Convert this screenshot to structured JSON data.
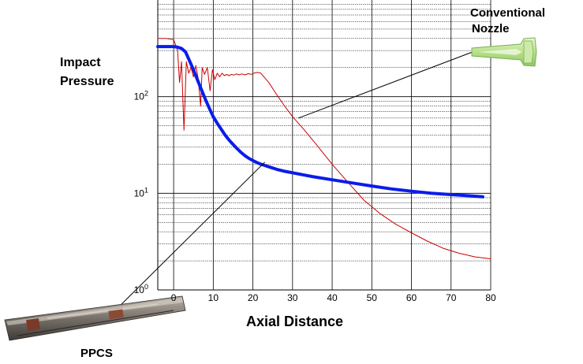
{
  "chart_data": {
    "type": "line",
    "title": "",
    "xlabel": "Axial Distance",
    "ylabel": [
      "Impact",
      "Pressure"
    ],
    "xlim": [
      -4,
      80
    ],
    "ylim": [
      1,
      1000
    ],
    "yscale": "log",
    "grid": true,
    "x_ticks": [
      "0",
      "10",
      "20",
      "30",
      "40",
      "50",
      "60",
      "70",
      "80"
    ],
    "y_ticks": [
      {
        "base": "10",
        "exp": "0"
      },
      {
        "base": "10",
        "exp": "1"
      },
      {
        "base": "10",
        "exp": "2"
      }
    ],
    "series": [
      {
        "color": "#cc0000",
        "width": 1,
        "x": [
          -4,
          -2,
          0,
          1,
          1.5,
          2,
          2.6,
          3.2,
          3.8,
          4.4,
          5,
          5.6,
          6.2,
          6.8,
          7.2,
          7.8,
          8.5,
          9.2,
          9.8,
          10.4,
          11,
          11.6,
          12.2,
          12.8,
          13.4,
          14,
          14.6,
          15.2,
          15.8,
          16.5,
          17.2,
          18,
          18.8,
          19.6,
          20.4,
          21.2,
          22,
          24,
          26,
          28,
          30,
          33,
          36,
          40,
          44,
          48,
          52,
          56,
          60,
          64,
          68,
          72,
          76,
          80
        ],
        "y": [
          400,
          400,
          390,
          300,
          140,
          230,
          45,
          230,
          175,
          200,
          160,
          210,
          155,
          80,
          200,
          170,
          200,
          115,
          190,
          150,
          175,
          160,
          175,
          165,
          170,
          165,
          170,
          167,
          172,
          168,
          172,
          168,
          173,
          170,
          176,
          178,
          175,
          140,
          105,
          80,
          62,
          45,
          32,
          20,
          13,
          8.5,
          6.2,
          4.8,
          3.9,
          3.2,
          2.7,
          2.4,
          2.2,
          2.1
        ]
      },
      {
        "color": "#0a1de8",
        "width": 4,
        "x": [
          -4,
          -2,
          0,
          1,
          2,
          3,
          4,
          5,
          6,
          7,
          8,
          9,
          10,
          11,
          12,
          13,
          14,
          15,
          16,
          17,
          18,
          19,
          20,
          21,
          22,
          23,
          24,
          26,
          28,
          30,
          35,
          40,
          45,
          50,
          55,
          60,
          65,
          70,
          75,
          78
        ],
        "y": [
          330,
          330,
          330,
          325,
          315,
          290,
          235,
          190,
          150,
          118,
          94,
          76,
          62,
          53,
          46,
          40,
          35.5,
          32,
          29,
          26.5,
          24.5,
          23,
          21.8,
          20.8,
          20,
          19.4,
          18.8,
          17.7,
          16.9,
          16.3,
          14.9,
          13.8,
          12.8,
          11.9,
          11.1,
          10.5,
          10,
          9.7,
          9.4,
          9.2
        ]
      }
    ],
    "annotations": [
      {
        "text": [
          "Conventional",
          "Nozzle"
        ],
        "target": {
          "x": 31.5,
          "y": 60
        }
      },
      {
        "text": "PPCS",
        "target": {
          "x": 23,
          "y": 21
        }
      }
    ]
  }
}
